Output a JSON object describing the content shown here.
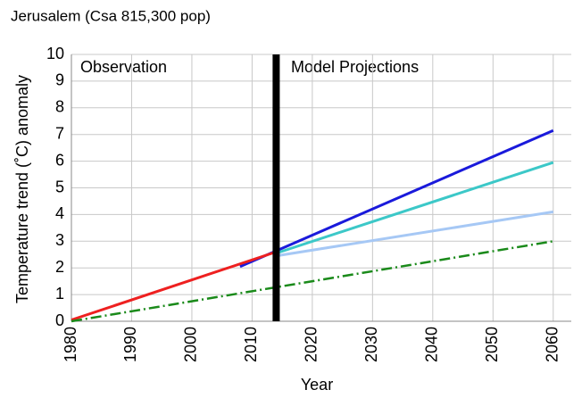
{
  "chart_data": {
    "type": "line",
    "title": "Jerusalem (Csa 815,300 pop)",
    "xlabel": "Year",
    "ylabel": "Temperature trend (˚C) anomaly",
    "annotations": [
      "Observation",
      "Model Projections"
    ],
    "divider_x": 2014,
    "xlim": [
      1980,
      2063
    ],
    "xticks": [
      1980,
      1990,
      2000,
      2010,
      2020,
      2030,
      2040,
      2050,
      2060
    ],
    "ylim": [
      0,
      10
    ],
    "yticks": [
      0,
      1,
      2,
      3,
      4,
      5,
      6,
      7,
      8,
      9,
      10
    ],
    "grid": true,
    "series": [
      {
        "color": "#1a1adb",
        "style": "solid",
        "x": [
          2008,
          2060
        ],
        "values": [
          2.05,
          7.15
        ]
      },
      {
        "color": "#3cc8c8",
        "style": "solid",
        "x": [
          2014,
          2060
        ],
        "values": [
          2.55,
          5.95
        ]
      },
      {
        "color": "#a6c8f5",
        "style": "solid",
        "x": [
          2014,
          2060
        ],
        "values": [
          2.45,
          4.1
        ]
      },
      {
        "color": "#ee2020",
        "style": "solid",
        "x": [
          1980,
          2014
        ],
        "values": [
          0.05,
          2.6
        ]
      },
      {
        "color": "#1a8a1a",
        "style": "dashdot",
        "x": [
          1980,
          2060
        ],
        "values": [
          0,
          3.0
        ]
      }
    ]
  }
}
